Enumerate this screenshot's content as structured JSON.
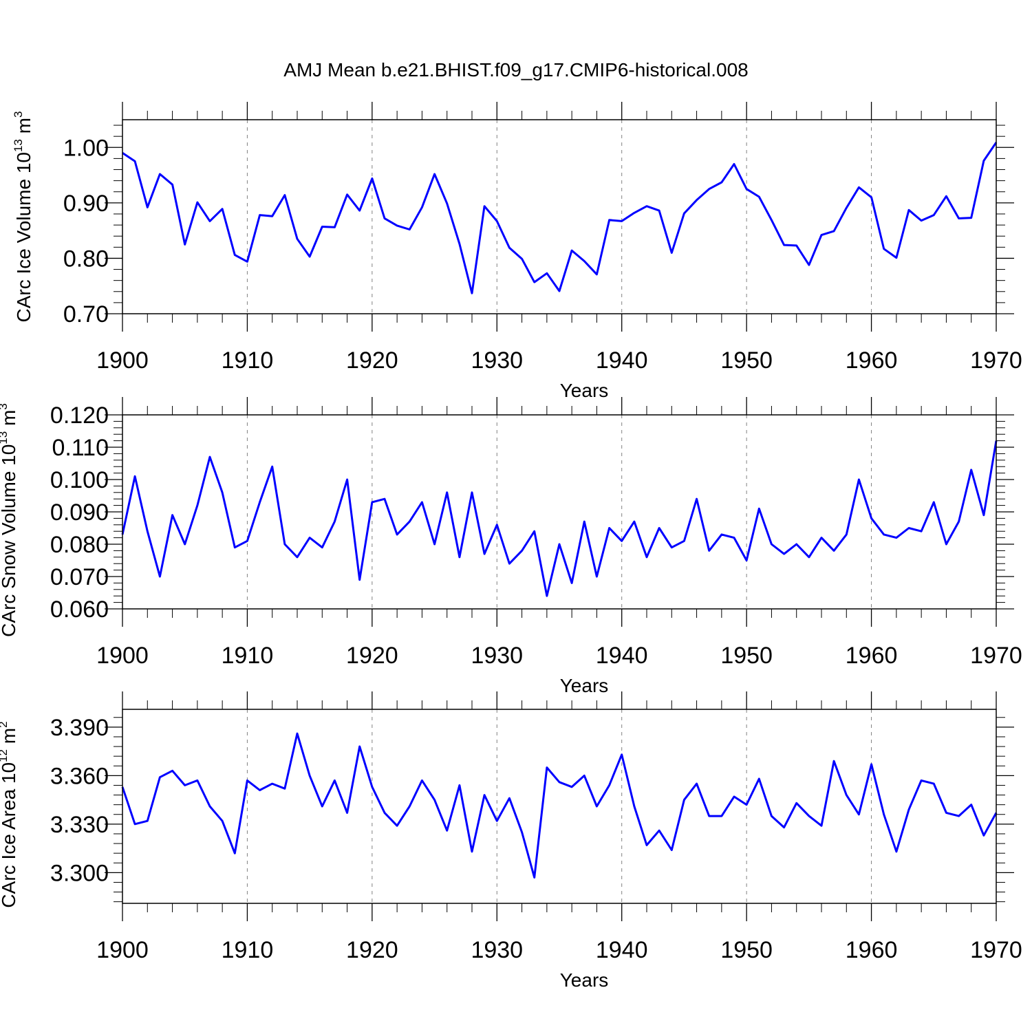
{
  "title": "AMJ Mean b.e21.BHIST.f09_g17.CMIP6-historical.008",
  "colors": {
    "line": "#0000ff",
    "axis": "#000000",
    "grid": "#808080",
    "background": "#ffffff"
  },
  "chart_data": [
    {
      "type": "line",
      "ylabel": {
        "base": "CArc Ice Volume 10",
        "exp": "13",
        "unit": " m",
        "unit_exp": "3"
      },
      "xlabel": "Years",
      "xlim": [
        1900,
        1970
      ],
      "ylim": [
        0.7,
        1.05
      ],
      "yticks": [
        "0.70",
        "0.80",
        "0.90",
        "1.00"
      ],
      "yminor_step": 0.02,
      "xticks": [
        "1900",
        "1910",
        "1920",
        "1930",
        "1940",
        "1950",
        "1960",
        "1970"
      ],
      "x_start": 1900,
      "series": [
        {
          "name": "CArc Ice Volume",
          "values": [
            0.99,
            0.975,
            0.892,
            0.952,
            0.933,
            0.825,
            0.901,
            0.867,
            0.889,
            0.806,
            0.794,
            0.878,
            0.876,
            0.914,
            0.835,
            0.803,
            0.857,
            0.856,
            0.915,
            0.886,
            0.944,
            0.872,
            0.859,
            0.852,
            0.892,
            0.952,
            0.899,
            0.826,
            0.737,
            0.894,
            0.867,
            0.819,
            0.799,
            0.757,
            0.773,
            0.741,
            0.814,
            0.795,
            0.771,
            0.869,
            0.867,
            0.882,
            0.894,
            0.886,
            0.81,
            0.881,
            0.905,
            0.925,
            0.937,
            0.97,
            0.925,
            0.911,
            0.869,
            0.824,
            0.823,
            0.788,
            0.842,
            0.849,
            0.891,
            0.928,
            0.91,
            0.817,
            0.801,
            0.887,
            0.868,
            0.878,
            0.912,
            0.872,
            0.873,
            0.976,
            1.009
          ]
        }
      ]
    },
    {
      "type": "line",
      "ylabel": {
        "base": "CArc Snow Volume 10",
        "exp": "13",
        "unit": " m",
        "unit_exp": "3"
      },
      "xlabel": "Years",
      "xlim": [
        1900,
        1970
      ],
      "ylim": [
        0.06,
        0.12
      ],
      "yticks": [
        "0.060",
        "0.070",
        "0.080",
        "0.090",
        "0.100",
        "0.110",
        "0.120"
      ],
      "yminor_step": 0.002,
      "xticks": [
        "1900",
        "1910",
        "1920",
        "1930",
        "1940",
        "1950",
        "1960",
        "1970"
      ],
      "x_start": 1900,
      "series": [
        {
          "name": "CArc Snow Volume",
          "values": [
            0.083,
            0.101,
            0.084,
            0.07,
            0.089,
            0.08,
            0.092,
            0.107,
            0.096,
            0.079,
            0.081,
            0.093,
            0.104,
            0.08,
            0.076,
            0.082,
            0.079,
            0.087,
            0.1,
            0.069,
            0.093,
            0.094,
            0.083,
            0.087,
            0.093,
            0.08,
            0.096,
            0.076,
            0.096,
            0.077,
            0.086,
            0.074,
            0.078,
            0.084,
            0.064,
            0.08,
            0.068,
            0.087,
            0.07,
            0.085,
            0.081,
            0.087,
            0.076,
            0.085,
            0.079,
            0.081,
            0.094,
            0.078,
            0.083,
            0.082,
            0.075,
            0.091,
            0.08,
            0.077,
            0.08,
            0.076,
            0.082,
            0.078,
            0.083,
            0.1,
            0.088,
            0.083,
            0.082,
            0.085,
            0.084,
            0.093,
            0.08,
            0.087,
            0.103,
            0.089,
            0.112
          ]
        }
      ]
    },
    {
      "type": "line",
      "ylabel": {
        "base": "CArc Ice Area 10",
        "exp": "12",
        "unit": " m",
        "unit_exp": "2"
      },
      "xlabel": "Years",
      "xlim": [
        1900,
        1970
      ],
      "ylim": [
        3.281,
        3.401
      ],
      "yticks": [
        "3.300",
        "3.330",
        "3.360",
        "3.390"
      ],
      "ytick_values": [
        3.3,
        3.33,
        3.36,
        3.39
      ],
      "yminor_step": 0.006,
      "xticks": [
        "1900",
        "1910",
        "1920",
        "1930",
        "1940",
        "1950",
        "1960",
        "1970"
      ],
      "x_start": 1900,
      "series": [
        {
          "name": "CArc Ice Area",
          "values": [
            3.353,
            3.33,
            3.332,
            3.359,
            3.363,
            3.354,
            3.357,
            3.341,
            3.332,
            3.312,
            3.357,
            3.351,
            3.355,
            3.352,
            3.386,
            3.36,
            3.341,
            3.357,
            3.337,
            3.378,
            3.353,
            3.337,
            3.329,
            3.341,
            3.357,
            3.345,
            3.326,
            3.354,
            3.313,
            3.348,
            3.332,
            3.346,
            3.325,
            3.297,
            3.365,
            3.356,
            3.353,
            3.36,
            3.341,
            3.354,
            3.373,
            3.341,
            3.317,
            3.326,
            3.314,
            3.345,
            3.355,
            3.335,
            3.335,
            3.347,
            3.342,
            3.358,
            3.335,
            3.328,
            3.343,
            3.335,
            3.329,
            3.369,
            3.348,
            3.336,
            3.367,
            3.336,
            3.313,
            3.339,
            3.357,
            3.355,
            3.337,
            3.335,
            3.342,
            3.323,
            3.337
          ]
        }
      ]
    }
  ]
}
